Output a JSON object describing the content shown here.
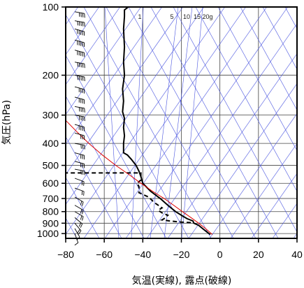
{
  "chart_data": {
    "type": "line",
    "title": "",
    "xlabel": "気温(実線), 露点(破線)",
    "ylabel": "気圧(hPa)",
    "xlim": [
      -80,
      40
    ],
    "ylim": [
      1050,
      100
    ],
    "y_scale": "log",
    "x_ticks": [
      -80,
      -60,
      -40,
      -20,
      0,
      20,
      40
    ],
    "x_tick_labels": [
      "−80",
      "−60",
      "−40",
      "−20",
      "0",
      "20",
      "40"
    ],
    "y_ticks": [
      100,
      200,
      300,
      400,
      500,
      600,
      700,
      800,
      900,
      1000
    ],
    "mixing_ratio_labels": [
      "1",
      "5",
      "10",
      "15",
      "20g"
    ],
    "grid": true,
    "series": [
      {
        "line": "solid",
        "color": "#000000",
        "points": [
          [
            -47.5,
            100
          ],
          [
            -49.5,
            103
          ],
          [
            -49.5,
            110
          ],
          [
            -50,
            125
          ],
          [
            -49.5,
            150
          ],
          [
            -50,
            175
          ],
          [
            -49.5,
            200
          ],
          [
            -50.5,
            230
          ],
          [
            -50,
            260
          ],
          [
            -50.5,
            290
          ],
          [
            -49.5,
            310
          ],
          [
            -50,
            340
          ],
          [
            -49.5,
            370
          ],
          [
            -50,
            400
          ],
          [
            -50,
            440
          ],
          [
            -48,
            450
          ],
          [
            -46,
            470
          ],
          [
            -43.5,
            500
          ],
          [
            -42,
            530
          ],
          [
            -41,
            560
          ],
          [
            -40,
            600
          ],
          [
            -36,
            650
          ],
          [
            -31,
            700
          ],
          [
            -27,
            750
          ],
          [
            -23,
            800
          ],
          [
            -19,
            840
          ],
          [
            -17,
            860
          ],
          [
            -14,
            880
          ],
          [
            -13.5,
            900
          ],
          [
            -11,
            920
          ],
          [
            -9,
            950
          ],
          [
            -7,
            980
          ],
          [
            -5,
            1010
          ]
        ]
      },
      {
        "line": "dashed",
        "color": "#000000",
        "points": [
          [
            -81,
            540
          ],
          [
            -41,
            540
          ],
          [
            -41,
            580
          ],
          [
            -43,
            600
          ],
          [
            -42,
            620
          ],
          [
            -42,
            660
          ],
          [
            -37,
            690
          ],
          [
            -34,
            730
          ],
          [
            -30,
            770
          ],
          [
            -32,
            790
          ],
          [
            -30,
            810
          ],
          [
            -27,
            830
          ],
          [
            -29,
            860
          ],
          [
            -30,
            870
          ],
          [
            -26,
            880
          ],
          [
            -20,
            890
          ],
          [
            -15,
            895
          ]
        ]
      },
      {
        "line": "solid",
        "color": "#e00000",
        "points": [
          [
            -81,
            310
          ],
          [
            -75,
            350
          ],
          [
            -68,
            400
          ],
          [
            -61,
            450
          ],
          [
            -54,
            500
          ],
          [
            -47,
            550
          ],
          [
            -41,
            600
          ],
          [
            -35,
            650
          ],
          [
            -29,
            700
          ],
          [
            -24,
            750
          ],
          [
            -19.5,
            800
          ],
          [
            -15,
            850
          ],
          [
            -11,
            900
          ],
          [
            -7.5,
            950
          ],
          [
            -4.5,
            1000
          ],
          [
            -4,
            1010
          ]
        ]
      }
    ],
    "wind_barbs": [
      {
        "p": 105,
        "dir": 280,
        "spd": 40
      },
      {
        "p": 115,
        "dir": 280,
        "spd": 45
      },
      {
        "p": 125,
        "dir": 285,
        "spd": 45
      },
      {
        "p": 140,
        "dir": 285,
        "spd": 50
      },
      {
        "p": 155,
        "dir": 285,
        "spd": 50
      },
      {
        "p": 175,
        "dir": 280,
        "spd": 45
      },
      {
        "p": 200,
        "dir": 280,
        "spd": 45
      },
      {
        "p": 225,
        "dir": 285,
        "spd": 40
      },
      {
        "p": 250,
        "dir": 285,
        "spd": 40
      },
      {
        "p": 275,
        "dir": 280,
        "spd": 40
      },
      {
        "p": 300,
        "dir": 280,
        "spd": 35
      },
      {
        "p": 330,
        "dir": 285,
        "spd": 35
      },
      {
        "p": 360,
        "dir": 285,
        "spd": 30
      },
      {
        "p": 400,
        "dir": 280,
        "spd": 30
      },
      {
        "p": 440,
        "dir": 285,
        "spd": 30
      },
      {
        "p": 480,
        "dir": 285,
        "spd": 25
      },
      {
        "p": 520,
        "dir": 280,
        "spd": 25
      },
      {
        "p": 570,
        "dir": 290,
        "spd": 20
      },
      {
        "p": 630,
        "dir": 290,
        "spd": 20
      },
      {
        "p": 690,
        "dir": 300,
        "spd": 15
      },
      {
        "p": 750,
        "dir": 300,
        "spd": 15
      },
      {
        "p": 800,
        "dir": 300,
        "spd": 20
      },
      {
        "p": 850,
        "dir": 310,
        "spd": 15
      },
      {
        "p": 900,
        "dir": 320,
        "spd": 15
      },
      {
        "p": 950,
        "dir": 330,
        "spd": 10
      },
      {
        "p": 1000,
        "dir": 340,
        "spd": 10
      }
    ]
  }
}
